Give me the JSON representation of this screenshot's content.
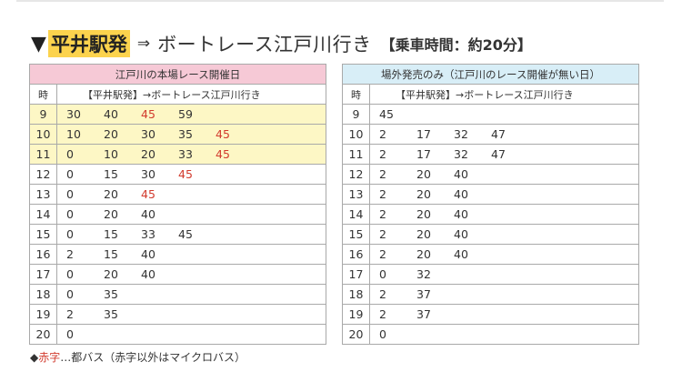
{
  "heading": {
    "marker": "▼",
    "station": "平井駅発",
    "arrow": "⇒",
    "destination": "ボートレース江戸川行き",
    "ride_time": "【乗車時間：約20分】"
  },
  "left_table": {
    "caption": "江戸川の本場レース開催日",
    "hour_header": "時",
    "route_header": "【平井駅発】→ボートレース江戸川行き",
    "rows": [
      {
        "hour": "9",
        "highlight": true,
        "minutes": [
          {
            "v": "30",
            "red": false
          },
          {
            "v": "40",
            "red": false
          },
          {
            "v": "45",
            "red": true
          },
          {
            "v": "59",
            "red": false
          }
        ]
      },
      {
        "hour": "10",
        "highlight": true,
        "minutes": [
          {
            "v": "10",
            "red": false
          },
          {
            "v": "20",
            "red": false
          },
          {
            "v": "30",
            "red": false
          },
          {
            "v": "35",
            "red": false
          },
          {
            "v": "45",
            "red": true
          }
        ]
      },
      {
        "hour": "11",
        "highlight": true,
        "minutes": [
          {
            "v": "0",
            "red": false
          },
          {
            "v": "10",
            "red": false
          },
          {
            "v": "20",
            "red": false
          },
          {
            "v": "33",
            "red": false
          },
          {
            "v": "45",
            "red": true
          }
        ]
      },
      {
        "hour": "12",
        "highlight": false,
        "minutes": [
          {
            "v": "0",
            "red": false
          },
          {
            "v": "15",
            "red": false
          },
          {
            "v": "30",
            "red": false
          },
          {
            "v": "45",
            "red": true
          }
        ]
      },
      {
        "hour": "13",
        "highlight": false,
        "minutes": [
          {
            "v": "0",
            "red": false
          },
          {
            "v": "20",
            "red": false
          },
          {
            "v": "45",
            "red": true
          }
        ]
      },
      {
        "hour": "14",
        "highlight": false,
        "minutes": [
          {
            "v": "0",
            "red": false
          },
          {
            "v": "20",
            "red": false
          },
          {
            "v": "40",
            "red": false
          }
        ]
      },
      {
        "hour": "15",
        "highlight": false,
        "minutes": [
          {
            "v": "0",
            "red": false
          },
          {
            "v": "15",
            "red": false
          },
          {
            "v": "33",
            "red": false
          },
          {
            "v": "45",
            "red": false
          }
        ]
      },
      {
        "hour": "16",
        "highlight": false,
        "minutes": [
          {
            "v": "2",
            "red": false
          },
          {
            "v": "15",
            "red": false
          },
          {
            "v": "40",
            "red": false
          }
        ]
      },
      {
        "hour": "17",
        "highlight": false,
        "minutes": [
          {
            "v": "0",
            "red": false
          },
          {
            "v": "20",
            "red": false
          },
          {
            "v": "40",
            "red": false
          }
        ]
      },
      {
        "hour": "18",
        "highlight": false,
        "minutes": [
          {
            "v": "0",
            "red": false
          },
          {
            "v": "35",
            "red": false
          }
        ]
      },
      {
        "hour": "19",
        "highlight": false,
        "minutes": [
          {
            "v": "2",
            "red": false
          },
          {
            "v": "35",
            "red": false
          }
        ]
      },
      {
        "hour": "20",
        "highlight": false,
        "minutes": [
          {
            "v": "0",
            "red": false
          }
        ]
      }
    ]
  },
  "right_table": {
    "caption": "場外発売のみ（江戸川のレース開催が無い日）",
    "hour_header": "時",
    "route_header": "【平井駅発】→ボートレース江戸川行き",
    "rows": [
      {
        "hour": "9",
        "minutes": [
          {
            "v": "45",
            "red": false
          }
        ]
      },
      {
        "hour": "10",
        "minutes": [
          {
            "v": "2",
            "red": false
          },
          {
            "v": "17",
            "red": false
          },
          {
            "v": "32",
            "red": false
          },
          {
            "v": "47",
            "red": false
          }
        ]
      },
      {
        "hour": "11",
        "minutes": [
          {
            "v": "2",
            "red": false
          },
          {
            "v": "17",
            "red": false
          },
          {
            "v": "32",
            "red": false
          },
          {
            "v": "47",
            "red": false
          }
        ]
      },
      {
        "hour": "12",
        "minutes": [
          {
            "v": "2",
            "red": false
          },
          {
            "v": "20",
            "red": false
          },
          {
            "v": "40",
            "red": false
          }
        ]
      },
      {
        "hour": "13",
        "minutes": [
          {
            "v": "2",
            "red": false
          },
          {
            "v": "20",
            "red": false
          },
          {
            "v": "40",
            "red": false
          }
        ]
      },
      {
        "hour": "14",
        "minutes": [
          {
            "v": "2",
            "red": false
          },
          {
            "v": "20",
            "red": false
          },
          {
            "v": "40",
            "red": false
          }
        ]
      },
      {
        "hour": "15",
        "minutes": [
          {
            "v": "2",
            "red": false
          },
          {
            "v": "20",
            "red": false
          },
          {
            "v": "40",
            "red": false
          }
        ]
      },
      {
        "hour": "16",
        "minutes": [
          {
            "v": "2",
            "red": false
          },
          {
            "v": "20",
            "red": false
          },
          {
            "v": "40",
            "red": false
          }
        ]
      },
      {
        "hour": "17",
        "minutes": [
          {
            "v": "0",
            "red": false
          },
          {
            "v": "32",
            "red": false
          }
        ]
      },
      {
        "hour": "18",
        "minutes": [
          {
            "v": "2",
            "red": false
          },
          {
            "v": "37",
            "red": false
          }
        ]
      },
      {
        "hour": "19",
        "minutes": [
          {
            "v": "2",
            "red": false
          },
          {
            "v": "37",
            "red": false
          }
        ]
      },
      {
        "hour": "20",
        "minutes": [
          {
            "v": "0",
            "red": false
          }
        ]
      }
    ]
  },
  "legend": {
    "marker": "◆",
    "red_label": "赤字",
    "text": "…都バス（赤字以外はマイクロバス）"
  },
  "colors": {
    "red_text": "#d23b2e",
    "highlight_bg": "#fdf7c5",
    "station_highlight": "#fcd34d",
    "left_caption_bg": "#f6c9d6",
    "right_caption_bg": "#d8eef7",
    "border": "#a9a9a9"
  }
}
